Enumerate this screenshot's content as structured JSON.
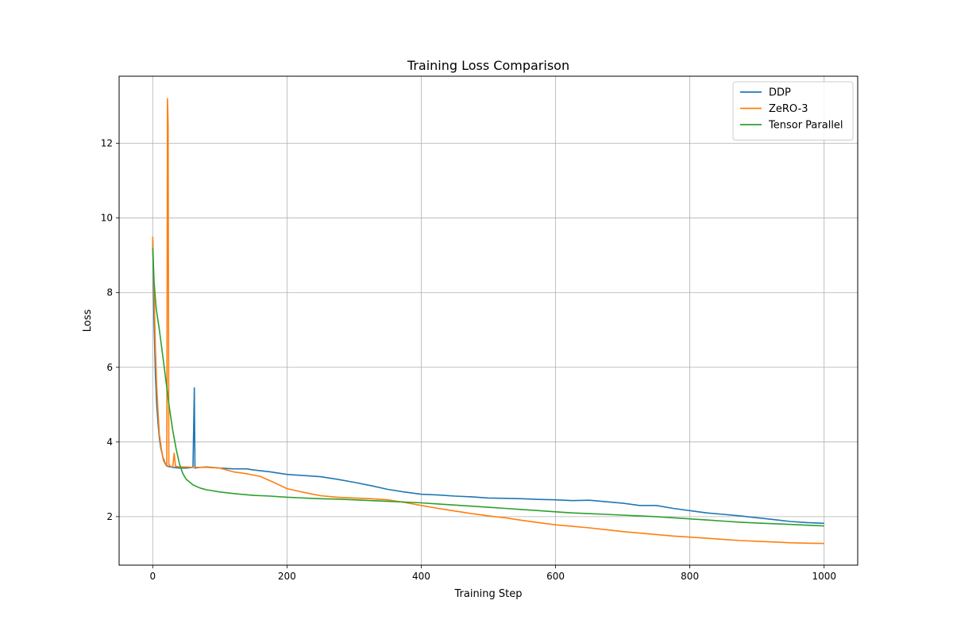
{
  "chart_data": {
    "type": "line",
    "title": "Training Loss Comparison",
    "xlabel": "Training Step",
    "ylabel": "Loss",
    "xlim": [
      -50,
      1050
    ],
    "ylim": [
      0.7,
      13.8
    ],
    "xticks": [
      0,
      200,
      400,
      600,
      800,
      1000
    ],
    "yticks": [
      2,
      4,
      6,
      8,
      10,
      12
    ],
    "grid": true,
    "legend_position": "top-right",
    "series": [
      {
        "name": "DDP",
        "color": "#1f77b4",
        "points": [
          [
            0,
            9.4
          ],
          [
            2,
            7.2
          ],
          [
            4,
            5.8
          ],
          [
            6,
            5.0
          ],
          [
            8,
            4.5
          ],
          [
            10,
            4.1
          ],
          [
            12,
            3.85
          ],
          [
            15,
            3.6
          ],
          [
            18,
            3.45
          ],
          [
            22,
            3.35
          ],
          [
            30,
            3.32
          ],
          [
            40,
            3.3
          ],
          [
            50,
            3.3
          ],
          [
            60,
            3.32
          ],
          [
            62,
            5.45
          ],
          [
            63,
            3.3
          ],
          [
            70,
            3.32
          ],
          [
            80,
            3.33
          ],
          [
            100,
            3.3
          ],
          [
            120,
            3.28
          ],
          [
            140,
            3.28
          ],
          [
            150,
            3.25
          ],
          [
            175,
            3.2
          ],
          [
            200,
            3.13
          ],
          [
            225,
            3.1
          ],
          [
            250,
            3.07
          ],
          [
            275,
            3.0
          ],
          [
            300,
            2.92
          ],
          [
            325,
            2.83
          ],
          [
            350,
            2.73
          ],
          [
            375,
            2.66
          ],
          [
            400,
            2.6
          ],
          [
            425,
            2.58
          ],
          [
            450,
            2.55
          ],
          [
            475,
            2.53
          ],
          [
            500,
            2.5
          ],
          [
            525,
            2.49
          ],
          [
            550,
            2.48
          ],
          [
            575,
            2.46
          ],
          [
            600,
            2.45
          ],
          [
            625,
            2.43
          ],
          [
            650,
            2.44
          ],
          [
            675,
            2.4
          ],
          [
            700,
            2.36
          ],
          [
            725,
            2.3
          ],
          [
            750,
            2.3
          ],
          [
            775,
            2.22
          ],
          [
            800,
            2.16
          ],
          [
            825,
            2.1
          ],
          [
            850,
            2.06
          ],
          [
            875,
            2.02
          ],
          [
            900,
            1.97
          ],
          [
            925,
            1.92
          ],
          [
            950,
            1.87
          ],
          [
            975,
            1.84
          ],
          [
            1000,
            1.82
          ]
        ]
      },
      {
        "name": "ZeRO-3",
        "color": "#ff7f0e",
        "points": [
          [
            0,
            9.5
          ],
          [
            2,
            8.0
          ],
          [
            4,
            6.5
          ],
          [
            6,
            5.5
          ],
          [
            8,
            4.8
          ],
          [
            10,
            4.2
          ],
          [
            13,
            3.8
          ],
          [
            16,
            3.5
          ],
          [
            19,
            3.4
          ],
          [
            21,
            3.35
          ],
          [
            22,
            13.2
          ],
          [
            23,
            12.5
          ],
          [
            24,
            3.4
          ],
          [
            26,
            3.35
          ],
          [
            30,
            3.33
          ],
          [
            32,
            3.7
          ],
          [
            34,
            3.35
          ],
          [
            40,
            3.33
          ],
          [
            50,
            3.33
          ],
          [
            60,
            3.32
          ],
          [
            80,
            3.32
          ],
          [
            100,
            3.3
          ],
          [
            120,
            3.2
          ],
          [
            140,
            3.15
          ],
          [
            160,
            3.08
          ],
          [
            180,
            2.92
          ],
          [
            200,
            2.75
          ],
          [
            225,
            2.65
          ],
          [
            250,
            2.56
          ],
          [
            275,
            2.52
          ],
          [
            300,
            2.5
          ],
          [
            325,
            2.48
          ],
          [
            350,
            2.45
          ],
          [
            375,
            2.38
          ],
          [
            400,
            2.3
          ],
          [
            425,
            2.22
          ],
          [
            450,
            2.15
          ],
          [
            475,
            2.08
          ],
          [
            500,
            2.02
          ],
          [
            525,
            1.97
          ],
          [
            550,
            1.9
          ],
          [
            575,
            1.84
          ],
          [
            600,
            1.78
          ],
          [
            625,
            1.74
          ],
          [
            650,
            1.7
          ],
          [
            675,
            1.65
          ],
          [
            700,
            1.6
          ],
          [
            725,
            1.56
          ],
          [
            750,
            1.52
          ],
          [
            775,
            1.48
          ],
          [
            800,
            1.45
          ],
          [
            825,
            1.42
          ],
          [
            850,
            1.39
          ],
          [
            875,
            1.36
          ],
          [
            900,
            1.34
          ],
          [
            925,
            1.32
          ],
          [
            950,
            1.3
          ],
          [
            975,
            1.29
          ],
          [
            1000,
            1.28
          ]
        ]
      },
      {
        "name": "Tensor Parallel",
        "color": "#2ca02c",
        "points": [
          [
            0,
            9.2
          ],
          [
            2,
            8.3
          ],
          [
            5,
            7.6
          ],
          [
            10,
            7.0
          ],
          [
            15,
            6.3
          ],
          [
            20,
            5.6
          ],
          [
            25,
            4.9
          ],
          [
            30,
            4.3
          ],
          [
            35,
            3.8
          ],
          [
            40,
            3.4
          ],
          [
            45,
            3.15
          ],
          [
            50,
            3.0
          ],
          [
            60,
            2.85
          ],
          [
            70,
            2.77
          ],
          [
            80,
            2.72
          ],
          [
            100,
            2.66
          ],
          [
            125,
            2.61
          ],
          [
            150,
            2.57
          ],
          [
            175,
            2.55
          ],
          [
            200,
            2.52
          ],
          [
            225,
            2.5
          ],
          [
            250,
            2.48
          ],
          [
            275,
            2.47
          ],
          [
            300,
            2.45
          ],
          [
            325,
            2.43
          ],
          [
            350,
            2.41
          ],
          [
            375,
            2.39
          ],
          [
            400,
            2.37
          ],
          [
            425,
            2.34
          ],
          [
            450,
            2.31
          ],
          [
            475,
            2.28
          ],
          [
            500,
            2.25
          ],
          [
            525,
            2.22
          ],
          [
            550,
            2.19
          ],
          [
            575,
            2.16
          ],
          [
            600,
            2.13
          ],
          [
            625,
            2.1
          ],
          [
            650,
            2.08
          ],
          [
            675,
            2.06
          ],
          [
            700,
            2.04
          ],
          [
            725,
            2.02
          ],
          [
            750,
            2.0
          ],
          [
            775,
            1.97
          ],
          [
            800,
            1.94
          ],
          [
            825,
            1.91
          ],
          [
            850,
            1.88
          ],
          [
            875,
            1.85
          ],
          [
            900,
            1.83
          ],
          [
            925,
            1.81
          ],
          [
            950,
            1.79
          ],
          [
            975,
            1.77
          ],
          [
            1000,
            1.75
          ]
        ]
      }
    ]
  }
}
